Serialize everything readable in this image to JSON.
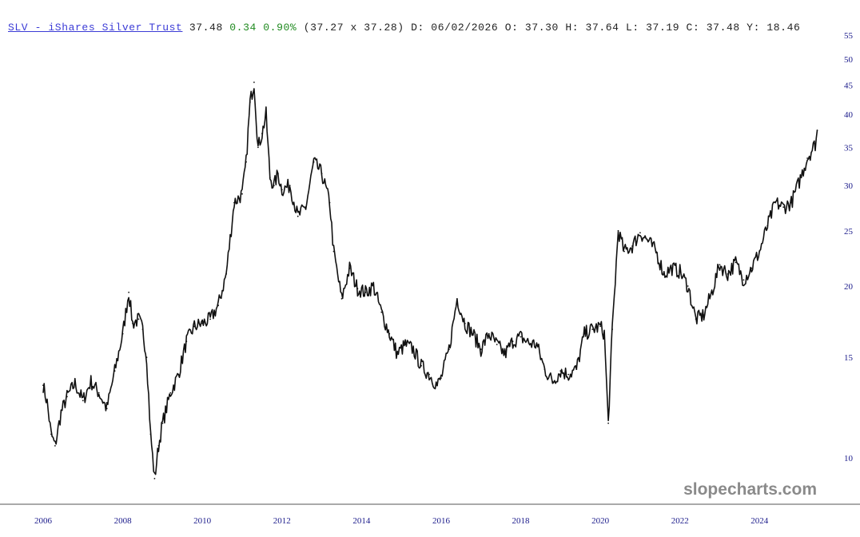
{
  "header": {
    "symbol_link": "SLV - iShares Silver Trust",
    "last": "37.48",
    "change": "0.34 0.90%",
    "quote_rest": "(37.27 x 37.28) D: 06/02/2026 O: 37.30 H: 37.64 L: 37.19 C: 37.48 Y: 18.46"
  },
  "watermark": "slopecharts.com",
  "colors": {
    "series": "#111111",
    "axis_text": "#1a1a8a",
    "link": "#3b3bd6",
    "change_up": "#1f8a1f",
    "watermark": "#8a8a8a",
    "baseline": "#555555"
  },
  "chart_data": {
    "type": "line",
    "y_scale": "log",
    "ylim": [
      8.8,
      56
    ],
    "xlim": [
      2006.0,
      2025.5
    ],
    "y_ticks": [
      "10",
      "15",
      "20",
      "25",
      "30",
      "35",
      "40",
      "45",
      "50",
      "55"
    ],
    "x_ticks": [
      "2006",
      "2008",
      "2010",
      "2012",
      "2014",
      "2016",
      "2018",
      "2020",
      "2022",
      "2024"
    ],
    "series": [
      {
        "x": [
          2006.0,
          2006.1,
          2006.2,
          2006.3,
          2006.45,
          2006.6,
          2006.8,
          2007.0,
          2007.2,
          2007.4,
          2007.6,
          2007.8,
          2008.0,
          2008.15,
          2008.25,
          2008.4,
          2008.5,
          2008.6,
          2008.7,
          2008.8,
          2008.9,
          2009.0,
          2009.2,
          2009.4,
          2009.6,
          2009.8,
          2010.0,
          2010.2,
          2010.4,
          2010.6,
          2010.8,
          2011.0,
          2011.1,
          2011.2,
          2011.3,
          2011.4,
          2011.5,
          2011.6,
          2011.7,
          2011.8,
          2011.9,
          2012.0,
          2012.2,
          2012.4,
          2012.6,
          2012.8,
          2013.0,
          2013.2,
          2013.3,
          2013.5,
          2013.7,
          2013.9,
          2014.1,
          2014.3,
          2014.5,
          2014.7,
          2014.9,
          2015.1,
          2015.3,
          2015.5,
          2015.7,
          2015.9,
          2016.0,
          2016.2,
          2016.4,
          2016.6,
          2016.8,
          2017.0,
          2017.2,
          2017.4,
          2017.6,
          2017.8,
          2018.0,
          2018.2,
          2018.4,
          2018.6,
          2018.8,
          2019.0,
          2019.2,
          2019.4,
          2019.6,
          2019.8,
          2020.0,
          2020.1,
          2020.2,
          2020.3,
          2020.45,
          2020.6,
          2020.8,
          2021.0,
          2021.2,
          2021.4,
          2021.6,
          2021.8,
          2022.0,
          2022.2,
          2022.4,
          2022.6,
          2022.8,
          2023.0,
          2023.2,
          2023.4,
          2023.6,
          2023.8,
          2024.0,
          2024.2,
          2024.4,
          2024.6,
          2024.8,
          2025.0,
          2025.2,
          2025.4,
          2025.45
        ],
        "values": [
          13.4,
          12.5,
          11.0,
          10.5,
          12.0,
          12.8,
          13.5,
          12.6,
          13.6,
          13.0,
          12.2,
          14.2,
          16.5,
          19.5,
          17.2,
          17.5,
          16.8,
          15.0,
          11.0,
          9.2,
          10.5,
          11.5,
          13.0,
          14.0,
          16.0,
          17.0,
          17.2,
          17.5,
          18.5,
          21.0,
          28.0,
          29.0,
          33.0,
          42.0,
          45.5,
          35.0,
          37.0,
          40.0,
          31.0,
          30.0,
          31.5,
          29.5,
          30.0,
          26.5,
          27.5,
          33.0,
          31.5,
          28.0,
          23.0,
          19.0,
          21.5,
          19.8,
          19.5,
          20.0,
          18.0,
          16.5,
          15.2,
          15.8,
          15.5,
          14.5,
          14.0,
          13.4,
          13.8,
          15.5,
          19.0,
          17.2,
          16.5,
          15.5,
          16.5,
          15.8,
          15.2,
          16.0,
          16.3,
          15.9,
          15.8,
          14.3,
          13.6,
          14.2,
          14.0,
          14.3,
          16.5,
          16.8,
          17.0,
          16.5,
          11.5,
          16.8,
          25.0,
          23.0,
          23.5,
          24.8,
          24.0,
          23.0,
          21.0,
          21.5,
          21.2,
          20.0,
          17.5,
          17.8,
          19.5,
          21.8,
          21.0,
          22.0,
          20.5,
          21.5,
          23.0,
          25.5,
          28.0,
          27.5,
          28.0,
          30.5,
          33.5,
          35.5,
          37.5
        ]
      }
    ]
  }
}
